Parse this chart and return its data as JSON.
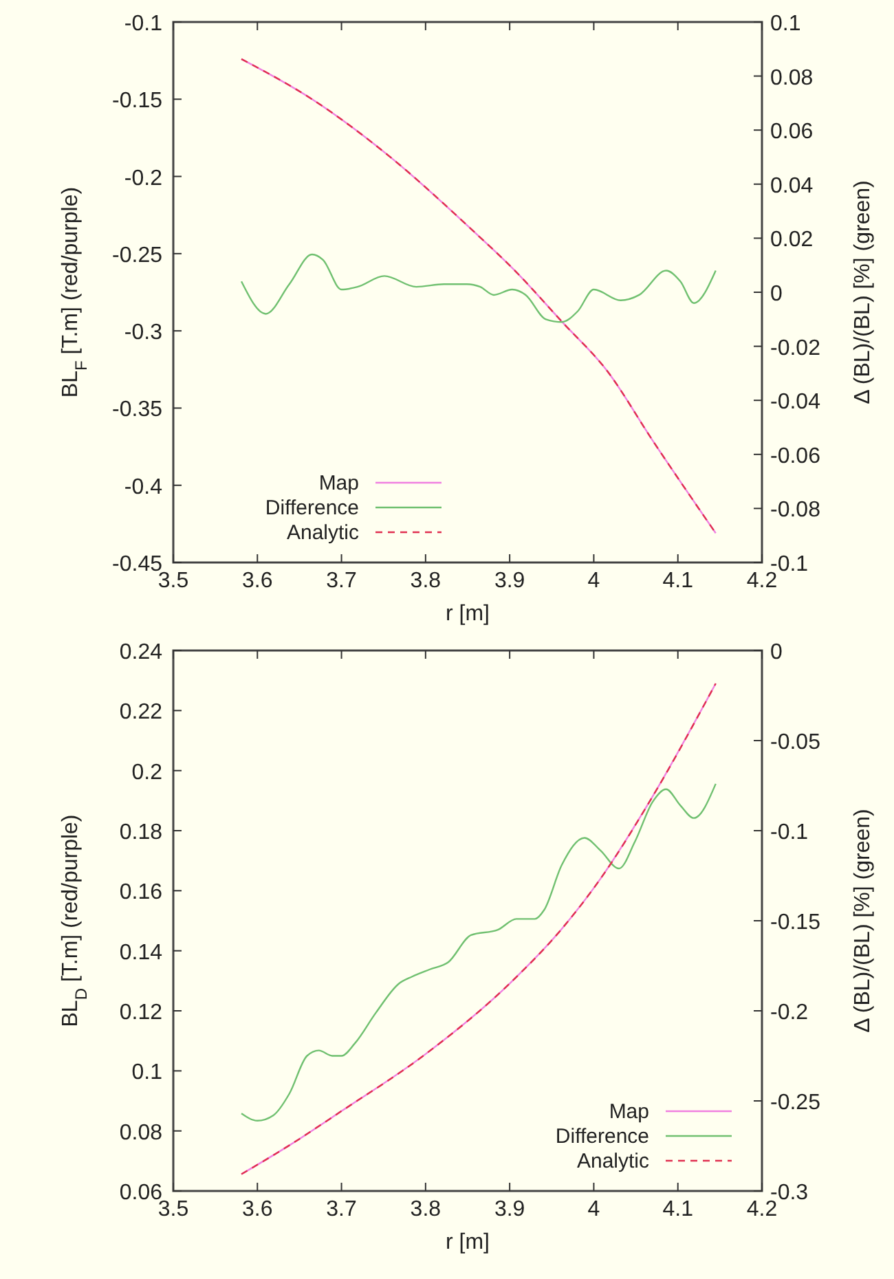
{
  "chart_data": [
    {
      "type": "line",
      "xlabel": "r [m]",
      "ylabel": "BL$_{F}$ [T.m] (red/purple)",
      "y2label": "Δ (BL)/(BL) [%] (green)",
      "xlim": [
        3.5,
        4.2
      ],
      "xticks": [
        3.5,
        3.6,
        3.7,
        3.8,
        3.9,
        4,
        4.1,
        4.2
      ],
      "ylim": [
        -0.45,
        -0.1
      ],
      "yticks": [
        -0.45,
        -0.4,
        -0.35,
        -0.3,
        -0.25,
        -0.2,
        -0.15,
        -0.1
      ],
      "y2lim": [
        -0.1,
        0.1
      ],
      "y2ticks": [
        -0.1,
        -0.08,
        -0.06,
        -0.04,
        -0.02,
        0,
        0.02,
        0.04,
        0.06,
        0.08,
        0.1
      ],
      "legend": "bottom left",
      "grid": false,
      "series": [
        {
          "name": "Map",
          "color": "#f080e0",
          "line_style": "solid",
          "x": [
            3.581,
            3.665,
            3.757,
            3.854,
            3.908,
            3.962,
            4.016,
            4.07,
            4.145
          ],
          "values": [
            -0.124,
            -0.15,
            -0.187,
            -0.234,
            -0.262,
            -0.294,
            -0.326,
            -0.371,
            -0.431
          ]
        },
        {
          "name": "Difference",
          "color": "#70c070",
          "axis": "y2",
          "line_style": "solid",
          "x": [
            3.581,
            3.61,
            3.638,
            3.665,
            3.678,
            3.7,
            3.719,
            3.751,
            3.789,
            3.822,
            3.849,
            3.865,
            3.881,
            3.903,
            3.919,
            3.943,
            3.962,
            3.981,
            4.0,
            4.032,
            4.054,
            4.086,
            4.103,
            4.119,
            4.145
          ],
          "values": [
            0.004,
            -0.008,
            0.003,
            0.014,
            0.012,
            0.001,
            0.002,
            0.006,
            0.002,
            0.003,
            0.003,
            0.002,
            -0.001,
            0.001,
            -0.001,
            -0.01,
            -0.011,
            -0.007,
            0.001,
            -0.003,
            -0.001,
            0.008,
            0.004,
            -0.004,
            0.008
          ]
        },
        {
          "name": "Analytic",
          "color": "#e03050",
          "line_style": "dashed",
          "x": [
            3.581,
            3.665,
            3.757,
            3.854,
            3.908,
            3.962,
            4.016,
            4.07,
            4.145
          ],
          "values": [
            -0.124,
            -0.15,
            -0.187,
            -0.234,
            -0.262,
            -0.294,
            -0.326,
            -0.371,
            -0.431
          ]
        }
      ]
    },
    {
      "type": "line",
      "xlabel": "r [m]",
      "ylabel": "BL$_{D}$ [T.m] (red/purple)",
      "y2label": "Δ (BL)/(BL) [%] (green)",
      "xlim": [
        3.5,
        4.2
      ],
      "xticks": [
        3.5,
        3.6,
        3.7,
        3.8,
        3.9,
        4,
        4.1,
        4.2
      ],
      "ylim": [
        0.06,
        0.24
      ],
      "yticks": [
        0.06,
        0.08,
        0.1,
        0.12,
        0.14,
        0.16,
        0.18,
        0.2,
        0.22,
        0.24
      ],
      "y2lim": [
        -0.3,
        0
      ],
      "y2ticks": [
        -0.3,
        -0.25,
        -0.2,
        -0.15,
        -0.1,
        -0.05,
        0
      ],
      "legend": "bottom right",
      "grid": false,
      "series": [
        {
          "name": "Map",
          "color": "#f080e0",
          "line_style": "solid",
          "x": [
            3.581,
            3.638,
            3.7,
            3.8,
            3.9,
            3.962,
            4.008,
            4.07,
            4.145
          ],
          "values": [
            0.0656,
            0.0752,
            0.0866,
            0.1056,
            0.1291,
            0.1473,
            0.164,
            0.1914,
            0.229
          ]
        },
        {
          "name": "Difference",
          "color": "#70c070",
          "axis": "y2",
          "line_style": "solid",
          "x": [
            3.581,
            3.6,
            3.619,
            3.638,
            3.659,
            3.673,
            3.689,
            3.7,
            3.716,
            3.741,
            3.768,
            3.784,
            3.805,
            3.827,
            3.854,
            3.886,
            3.908,
            3.93,
            3.941,
            3.962,
            3.989,
            4.008,
            4.03,
            4.049,
            4.07,
            4.086,
            4.103,
            4.119,
            4.145
          ],
          "values": [
            -0.257,
            -0.261,
            -0.258,
            -0.246,
            -0.225,
            -0.222,
            -0.225,
            -0.225,
            -0.218,
            -0.201,
            -0.185,
            -0.181,
            -0.177,
            -0.173,
            -0.158,
            -0.155,
            -0.149,
            -0.149,
            -0.144,
            -0.119,
            -0.104,
            -0.111,
            -0.121,
            -0.106,
            -0.084,
            -0.077,
            -0.086,
            -0.093,
            -0.074
          ]
        },
        {
          "name": "Analytic",
          "color": "#e03050",
          "line_style": "dashed",
          "x": [
            3.581,
            3.638,
            3.7,
            3.8,
            3.9,
            3.962,
            4.008,
            4.07,
            4.145
          ],
          "values": [
            0.0656,
            0.0752,
            0.0866,
            0.1056,
            0.1291,
            0.1473,
            0.164,
            0.1914,
            0.229
          ]
        }
      ]
    }
  ]
}
